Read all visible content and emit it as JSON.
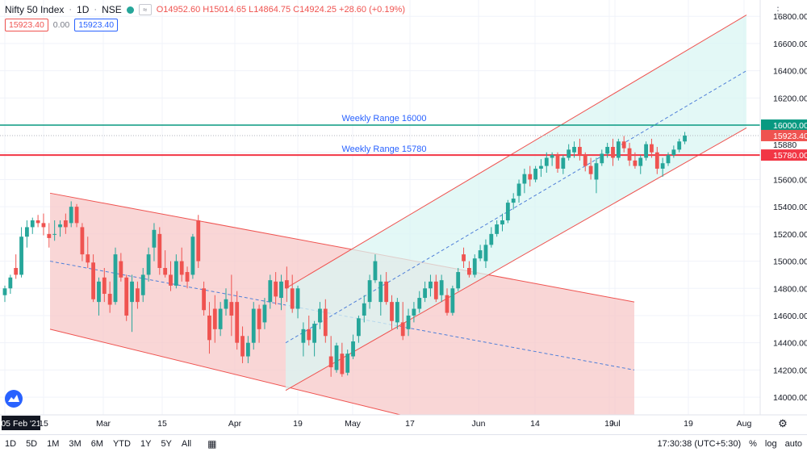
{
  "legend": {
    "symbol": "Nifty 50 Index",
    "interval": "1D",
    "exchange": "NSE",
    "ohlc": "O14952.60 H15014.65 L14864.75 C14924.25 +28.60 (+0.19%)",
    "pill_left": "15923.40",
    "pill_mid": "0.00",
    "pill_right": "15923.40"
  },
  "annotations": {
    "line_16000": "Weekly Range 16000",
    "line_15780": "Weekly Range 15780"
  },
  "price_labels": {
    "p16000": "16000.00",
    "p15923": "15923.40",
    "p15880": "15880",
    "p15780": "15780.00"
  },
  "bottom": {
    "ranges": [
      "1D",
      "5D",
      "1M",
      "3M",
      "6M",
      "YTD",
      "1Y",
      "5Y",
      "All"
    ],
    "clock": "17:30:38 (UTC+5:30)",
    "percent": "%",
    "log": "log",
    "auto": "auto"
  },
  "colors": {
    "up": "#26a69a",
    "down": "#ef5350",
    "level_16000": "#089981",
    "level_15780": "#f23645",
    "channel_down_fill": "#f7c8c8",
    "channel_up_fill": "#d9f5f3",
    "annotation_text": "#2962ff"
  },
  "chart_data": {
    "type": "candlestick",
    "y_ticks": [
      14000,
      14200,
      14400,
      14600,
      14800,
      15000,
      15200,
      15400,
      15600,
      15800,
      16000,
      16200,
      16400,
      16600,
      16800
    ],
    "x_ticks": [
      "05 Feb '21",
      "15",
      "Mar",
      "15",
      "Apr",
      "19",
      "May",
      "17",
      "Jun",
      "14",
      "19",
      "Jul",
      "19",
      "Aug"
    ],
    "highlighted_x_tick": "05 Feb '21",
    "ylim": [
      13870,
      16920
    ],
    "horizontal_levels": [
      16000,
      15923.4,
      15780
    ],
    "trend_channels": [
      {
        "name": "down-channel",
        "upper": [
          [
            0,
            15500
          ],
          [
            145,
            14700
          ]
        ],
        "lower": [
          [
            0,
            14500
          ],
          [
            145,
            13450
          ]
        ],
        "mid": [
          [
            0,
            15000
          ],
          [
            145,
            14200
          ]
        ]
      },
      {
        "name": "up-channel",
        "upper": [
          [
            58,
            14800
          ],
          [
            173,
            16810
          ]
        ],
        "lower": [
          [
            58,
            14050
          ],
          [
            173,
            15980
          ]
        ],
        "mid": [
          [
            58,
            14400
          ],
          [
            173,
            16400
          ]
        ]
      }
    ],
    "candles": [
      [
        14750,
        14820,
        14700,
        14800
      ],
      [
        14800,
        14900,
        14760,
        14880
      ],
      [
        14950,
        15050,
        14870,
        14900
      ],
      [
        14900,
        15250,
        14880,
        15180
      ],
      [
        15180,
        15300,
        15100,
        15250
      ],
      [
        15250,
        15320,
        15200,
        15300
      ],
      [
        15300,
        15340,
        15250,
        15280
      ],
      [
        15280,
        15350,
        15190,
        15250
      ],
      [
        15200,
        15280,
        15100,
        15170
      ],
      [
        15200,
        15300,
        15150,
        15200
      ],
      [
        15250,
        15300,
        15180,
        15270
      ],
      [
        15300,
        15350,
        15200,
        15250
      ],
      [
        15280,
        15440,
        15250,
        15400
      ],
      [
        15400,
        15420,
        15250,
        15280
      ],
      [
        15250,
        15280,
        15000,
        15050
      ],
      [
        15050,
        15180,
        14950,
        14990
      ],
      [
        14990,
        15050,
        14700,
        14720
      ],
      [
        14700,
        14880,
        14600,
        14850
      ],
      [
        14880,
        14950,
        14700,
        14760
      ],
      [
        14760,
        14850,
        14620,
        14680
      ],
      [
        14700,
        15100,
        14680,
        15050
      ],
      [
        15000,
        15060,
        14850,
        14880
      ],
      [
        14880,
        14900,
        14560,
        14600
      ],
      [
        14700,
        14900,
        14480,
        14850
      ],
      [
        14800,
        14850,
        14650,
        14700
      ],
      [
        14750,
        14950,
        14700,
        14900
      ],
      [
        14900,
        15100,
        14850,
        15050
      ],
      [
        15100,
        15280,
        15000,
        15230
      ],
      [
        15200,
        15250,
        14900,
        14950
      ],
      [
        14950,
        15080,
        14880,
        14900
      ],
      [
        14900,
        15000,
        14780,
        14820
      ],
      [
        14820,
        15050,
        14800,
        15000
      ],
      [
        15000,
        15100,
        14850,
        14900
      ],
      [
        14920,
        14960,
        14800,
        14850
      ],
      [
        14900,
        15200,
        14870,
        15180
      ],
      [
        15300,
        15340,
        14950,
        15000
      ],
      [
        14800,
        14850,
        14600,
        14640
      ],
      [
        14600,
        14700,
        14320,
        14420
      ],
      [
        14650,
        14750,
        14400,
        14500
      ],
      [
        14500,
        14700,
        14450,
        14650
      ],
      [
        14650,
        14800,
        14600,
        14720
      ],
      [
        14700,
        14900,
        14450,
        14600
      ],
      [
        14700,
        14780,
        14350,
        14400
      ],
      [
        14450,
        14520,
        14250,
        14300
      ],
      [
        14300,
        14450,
        14250,
        14400
      ],
      [
        14400,
        14700,
        14350,
        14650
      ],
      [
        14650,
        14680,
        14400,
        14500
      ],
      [
        14550,
        14730,
        14500,
        14680
      ],
      [
        14700,
        14900,
        14650,
        14860
      ],
      [
        14850,
        14920,
        14680,
        14740
      ],
      [
        14730,
        14900,
        14640,
        14850
      ],
      [
        14860,
        14960,
        14700,
        14800
      ],
      [
        14800,
        14900,
        14620,
        14650
      ],
      [
        14650,
        14820,
        14580,
        14800
      ],
      [
        14400,
        14550,
        14300,
        14500
      ],
      [
        14500,
        14600,
        14380,
        14420
      ],
      [
        14400,
        14560,
        14300,
        14540
      ],
      [
        14550,
        14700,
        14500,
        14650
      ],
      [
        14650,
        14720,
        14400,
        14450
      ],
      [
        14300,
        14450,
        14150,
        14220
      ],
      [
        14200,
        14400,
        14180,
        14380
      ],
      [
        14320,
        14400,
        14150,
        14170
      ],
      [
        14180,
        14350,
        14160,
        14320
      ],
      [
        14300,
        14460,
        14280,
        14410
      ],
      [
        14450,
        14600,
        14400,
        14580
      ],
      [
        14600,
        14750,
        14550,
        14690
      ],
      [
        14700,
        14900,
        14650,
        14860
      ],
      [
        14860,
        15050,
        14840,
        15000
      ],
      [
        14700,
        14900,
        14600,
        14850
      ],
      [
        14850,
        14920,
        14680,
        14700
      ],
      [
        14700,
        14750,
        14500,
        14560
      ],
      [
        14550,
        14730,
        14500,
        14700
      ],
      [
        14550,
        14700,
        14420,
        14450
      ],
      [
        14500,
        14650,
        14450,
        14600
      ],
      [
        14600,
        14700,
        14550,
        14650
      ],
      [
        14650,
        14780,
        14620,
        14730
      ],
      [
        14730,
        14850,
        14700,
        14800
      ],
      [
        14800,
        14900,
        14740,
        14850
      ],
      [
        14850,
        14900,
        14700,
        14720
      ],
      [
        14750,
        14900,
        14700,
        14860
      ],
      [
        14750,
        14800,
        14600,
        14620
      ],
      [
        14620,
        14820,
        14600,
        14800
      ],
      [
        14800,
        14950,
        14780,
        14920
      ],
      [
        15050,
        15100,
        14950,
        15000
      ],
      [
        14950,
        15000,
        14880,
        14900
      ],
      [
        14900,
        15050,
        14880,
        15020
      ],
      [
        15020,
        15120,
        15000,
        15080
      ],
      [
        15000,
        15160,
        14950,
        15120
      ],
      [
        15120,
        15250,
        15100,
        15200
      ],
      [
        15200,
        15300,
        15180,
        15270
      ],
      [
        15270,
        15350,
        15220,
        15300
      ],
      [
        15300,
        15450,
        15280,
        15430
      ],
      [
        15430,
        15500,
        15380,
        15460
      ],
      [
        15480,
        15600,
        15430,
        15570
      ],
      [
        15570,
        15680,
        15500,
        15640
      ],
      [
        15640,
        15700,
        15550,
        15600
      ],
      [
        15600,
        15700,
        15580,
        15680
      ],
      [
        15680,
        15750,
        15620,
        15700
      ],
      [
        15700,
        15800,
        15650,
        15760
      ],
      [
        15760,
        15800,
        15700,
        15780
      ],
      [
        15780,
        15800,
        15650,
        15680
      ],
      [
        15680,
        15780,
        15640,
        15760
      ],
      [
        15760,
        15860,
        15740,
        15820
      ],
      [
        15800,
        15880,
        15760,
        15840
      ],
      [
        15840,
        15900,
        15740,
        15780
      ],
      [
        15780,
        15800,
        15660,
        15700
      ],
      [
        15700,
        15760,
        15600,
        15640
      ],
      [
        15600,
        15760,
        15500,
        15720
      ],
      [
        15720,
        15820,
        15700,
        15790
      ],
      [
        15790,
        15870,
        15760,
        15840
      ],
      [
        15840,
        15900,
        15700,
        15760
      ],
      [
        15760,
        15900,
        15740,
        15880
      ],
      [
        15880,
        15920,
        15800,
        15830
      ],
      [
        15830,
        15870,
        15700,
        15740
      ],
      [
        15740,
        15800,
        15680,
        15700
      ],
      [
        15700,
        15780,
        15640,
        15760
      ],
      [
        15760,
        15880,
        15740,
        15860
      ],
      [
        15860,
        15900,
        15760,
        15800
      ],
      [
        15800,
        15840,
        15640,
        15680
      ],
      [
        15680,
        15760,
        15620,
        15720
      ],
      [
        15720,
        15800,
        15700,
        15780
      ],
      [
        15780,
        15850,
        15760,
        15820
      ],
      [
        15820,
        15900,
        15800,
        15880
      ],
      [
        15880,
        15950,
        15860,
        15923
      ]
    ]
  }
}
